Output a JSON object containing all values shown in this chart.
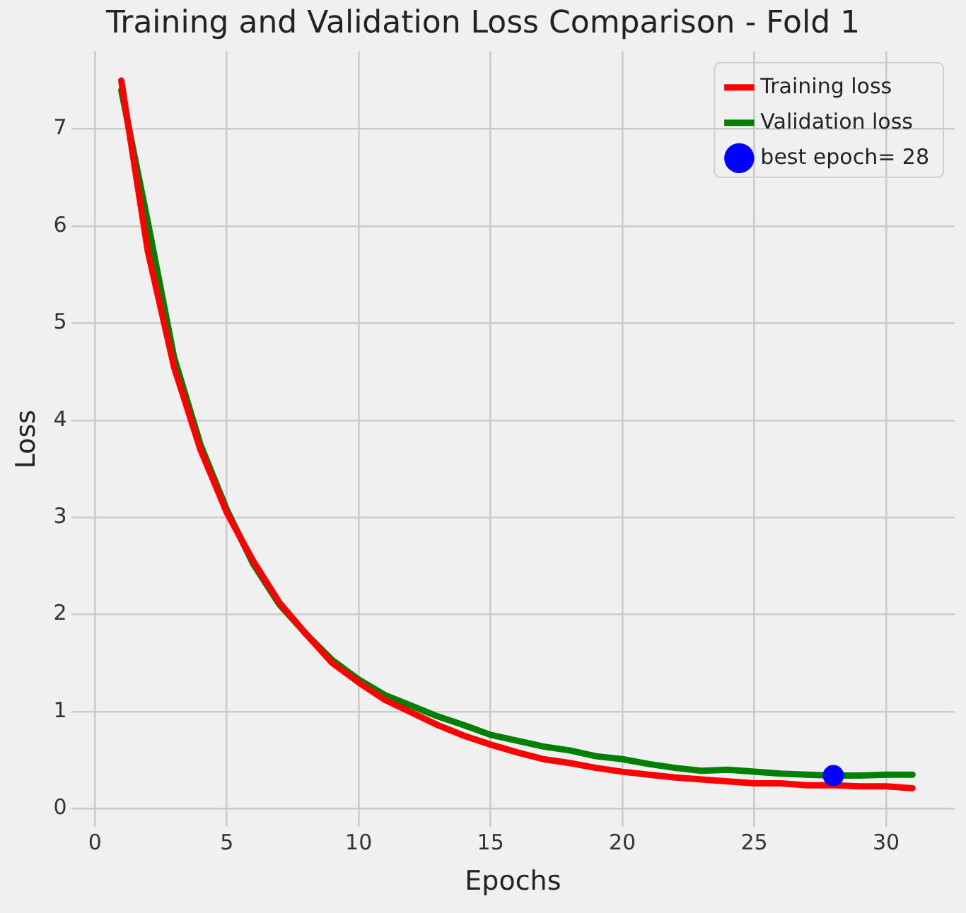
{
  "chart_data": {
    "type": "line",
    "title": "Training and Validation Loss Comparison - Fold 1",
    "xlabel": "Epochs",
    "ylabel": "Loss",
    "x": [
      1,
      2,
      3,
      4,
      5,
      6,
      7,
      8,
      9,
      10,
      11,
      12,
      13,
      14,
      15,
      16,
      17,
      18,
      19,
      20,
      21,
      22,
      23,
      24,
      25,
      26,
      27,
      28,
      29,
      30,
      31
    ],
    "series": [
      {
        "name": "Training loss",
        "color": "#ff0000",
        "values": [
          7.5,
          5.75,
          4.55,
          3.7,
          3.05,
          2.55,
          2.12,
          1.8,
          1.5,
          1.3,
          1.12,
          0.99,
          0.86,
          0.75,
          0.66,
          0.58,
          0.51,
          0.47,
          0.42,
          0.38,
          0.35,
          0.32,
          0.3,
          0.28,
          0.26,
          0.26,
          0.24,
          0.24,
          0.23,
          0.23,
          0.21
        ]
      },
      {
        "name": "Validation loss",
        "color": "#008000",
        "values": [
          7.4,
          6.05,
          4.65,
          3.75,
          3.08,
          2.52,
          2.1,
          1.8,
          1.53,
          1.33,
          1.17,
          1.06,
          0.95,
          0.86,
          0.76,
          0.7,
          0.64,
          0.6,
          0.54,
          0.51,
          0.46,
          0.42,
          0.39,
          0.4,
          0.38,
          0.36,
          0.35,
          0.34,
          0.34,
          0.35,
          0.35
        ]
      },
      {
        "name": "best epoch= 28",
        "type": "scatter",
        "color": "#0000ff",
        "x": [
          28
        ],
        "values": [
          0.34
        ]
      }
    ],
    "xlim": [
      -0.9,
      32.6
    ],
    "xticks": [
      0,
      5,
      10,
      15,
      20,
      25,
      30
    ],
    "ylim": [
      -0.19,
      7.8
    ],
    "yticks": [
      0,
      1,
      2,
      3,
      4,
      5,
      6,
      7
    ],
    "grid": true,
    "legend": "top right",
    "line_style": "solid"
  }
}
